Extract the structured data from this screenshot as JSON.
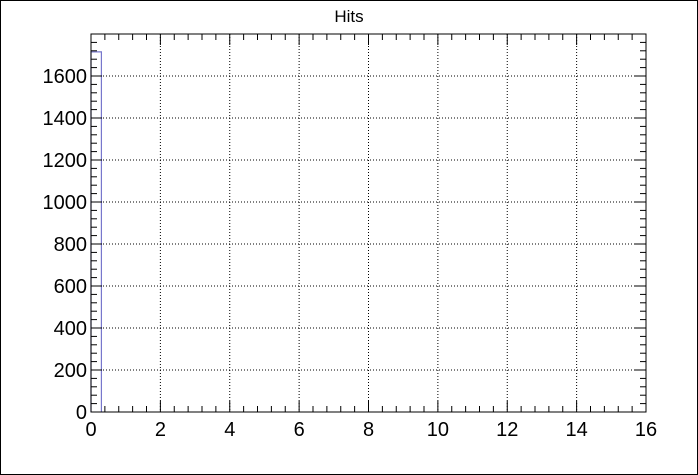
{
  "chart_data": {
    "type": "bar",
    "title": "Hits",
    "xlabel": "",
    "ylabel": "",
    "xlim": [
      0,
      16
    ],
    "ylim": [
      0,
      1800
    ],
    "x_ticks": [
      0,
      2,
      4,
      6,
      8,
      10,
      12,
      14,
      16
    ],
    "y_ticks": [
      0,
      200,
      400,
      600,
      800,
      1000,
      1200,
      1400,
      1600
    ],
    "grid": true,
    "line_color": "#7777cc",
    "bins": [
      {
        "x_low": 0,
        "x_high": 0.3,
        "value": 1715
      }
    ]
  }
}
